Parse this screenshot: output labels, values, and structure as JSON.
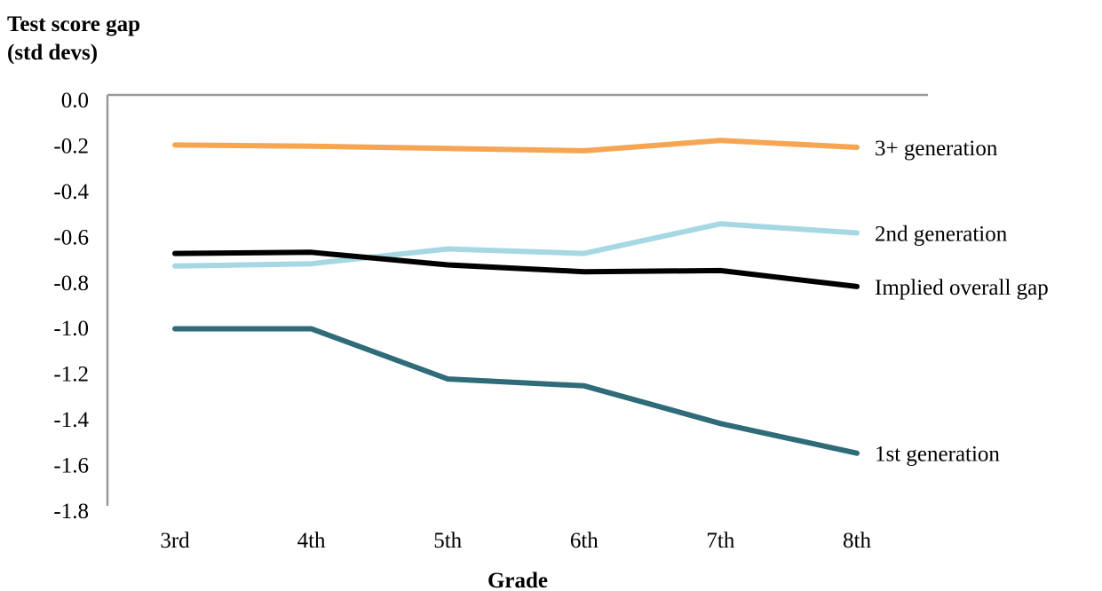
{
  "chart_data": {
    "type": "line",
    "ylabel_line1": "Test score gap",
    "ylabel_line2": "(std devs)",
    "xlabel": "Grade",
    "categories": [
      "3rd",
      "4th",
      "5th",
      "6th",
      "7th",
      "8th"
    ],
    "ylim": [
      -1.8,
      0.0
    ],
    "yticks": [
      "0.0",
      "-0.2",
      "-0.4",
      "-0.6",
      "-0.8",
      "-1.0",
      "-1.2",
      "-1.4",
      "-1.6",
      "-1.8"
    ],
    "ytick_values": [
      0.0,
      -0.2,
      -0.4,
      -0.6,
      -0.8,
      -1.0,
      -1.2,
      -1.4,
      -1.6,
      -1.8
    ],
    "grid": false,
    "legend": "inline labels at right end of lines",
    "series": [
      {
        "name": "3+ generation",
        "color": "#F6A553",
        "values": [
          -0.2,
          -0.205,
          -0.215,
          -0.225,
          -0.18,
          -0.21
        ]
      },
      {
        "name": "2nd generation",
        "color": "#A6D8E3",
        "values": [
          -0.73,
          -0.72,
          -0.655,
          -0.675,
          -0.545,
          -0.585
        ]
      },
      {
        "name": "Implied overall gap",
        "color": "#000000",
        "values": [
          -0.675,
          -0.67,
          -0.725,
          -0.755,
          -0.75,
          -0.82
        ]
      },
      {
        "name": "1st generation",
        "color": "#2F6B78",
        "values": [
          -1.005,
          -1.005,
          -1.225,
          -1.255,
          -1.42,
          -1.55
        ]
      }
    ]
  }
}
